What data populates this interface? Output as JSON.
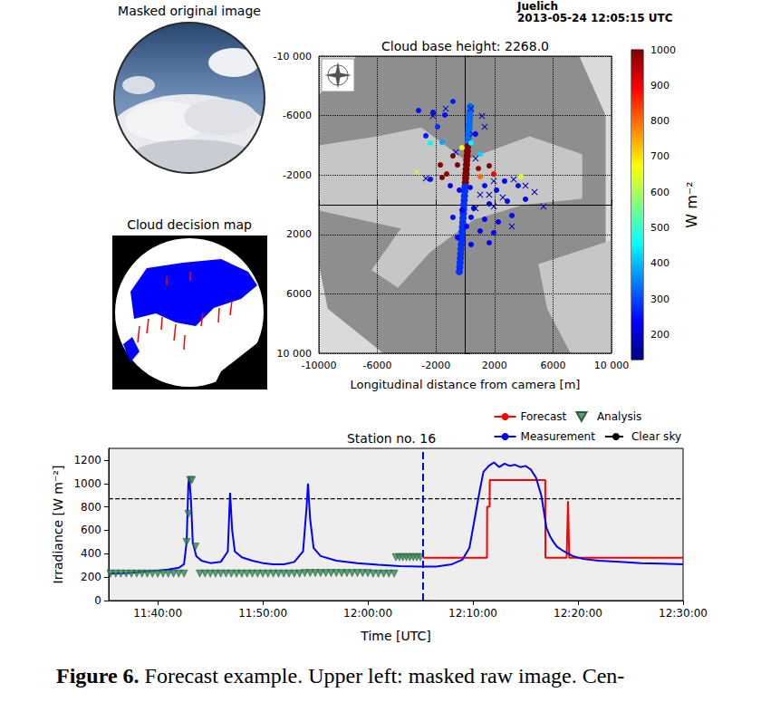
{
  "header": [
    "Juelich",
    "2013-05-24 12:05:15 UTC"
  ],
  "images": [
    {
      "title": "Masked original image"
    },
    {
      "title": "Cloud decision map"
    }
  ],
  "caption": {
    "label": "Figure 6.",
    "text": "Forecast example. Upper left: masked raw image. Cen-"
  },
  "chart_data": [
    {
      "type": "scatter",
      "title": "Cloud base height: 2268.0",
      "x_label": "Longitudinal distance from camera [m]",
      "xlim": [
        -10000,
        10000
      ],
      "xticks": [
        -10000,
        -6000,
        -2000,
        2000,
        6000,
        {
          "value": 10000,
          "label": "10 000"
        }
      ],
      "ylim": [
        10000,
        -10000
      ],
      "yticks": [
        {
          "value": -10000,
          "label": "-10 000"
        },
        -6000,
        -2000,
        2000,
        6000,
        {
          "value": 10000,
          "label": "10 000"
        }
      ],
      "grid": true,
      "colorbar": {
        "label": "W m⁻²",
        "range": [
          130,
          1000
        ],
        "ticks": [
          200,
          300,
          400,
          500,
          600,
          700,
          800,
          900,
          1000
        ]
      },
      "series": [
        {
          "type": "line",
          "marker": "o",
          "x": [
            350,
            330,
            310,
            290,
            270,
            250,
            230,
            210,
            190,
            170,
            150,
            130,
            110,
            90,
            70,
            50,
            30,
            10,
            -10,
            -30,
            -50,
            -70,
            -90,
            -110,
            -130,
            -150,
            -170,
            -190,
            -210,
            -230,
            -250,
            -270,
            -290,
            -310,
            -330,
            -350,
            -370,
            -400
          ],
          "y": [
            -6600,
            -6300,
            -6000,
            -5700,
            -5400,
            -5100,
            -4800,
            -4500,
            -4200,
            -3900,
            -3600,
            -3300,
            -3000,
            -2700,
            -2400,
            -2100,
            -1800,
            -1500,
            -1200,
            -900,
            -600,
            -300,
            0,
            300,
            600,
            900,
            1200,
            1500,
            1800,
            2100,
            2400,
            2700,
            3000,
            3300,
            3600,
            3900,
            4200,
            4500
          ],
          "values": [
            330,
            330,
            330,
            330,
            330,
            330,
            330,
            330,
            330,
            1000,
            1000,
            1000,
            1000,
            1000,
            1000,
            1000,
            1000,
            1000,
            280,
            280,
            280,
            280,
            280,
            280,
            280,
            280,
            280,
            280,
            280,
            280,
            280,
            280,
            280,
            280,
            280,
            280,
            280,
            280
          ]
        },
        {
          "type": "scatter",
          "marker": "o",
          "x": [
            -3190,
            -2200,
            -1390,
            -840,
            -1890,
            -2690,
            -2380,
            -1580,
            -220,
            400,
            710,
            1020,
            -840,
            -1700,
            -1270,
            -530,
            900,
            1640,
            1950,
            1020,
            -1580,
            -2380,
            -1020,
            -400,
            340,
            1330,
            2140,
            2690,
            3620,
            3810,
            4120,
            2880,
            1640,
            590,
            -220,
            -840,
            400,
            1330,
            2260,
            3190,
            90,
            1020,
            1950,
            -530,
            1640,
            400
          ],
          "y": [
            -6340,
            -6220,
            -6040,
            -6950,
            -5250,
            -4640,
            -4150,
            -4210,
            -3840,
            -4150,
            -4760,
            -3420,
            -3290,
            -2680,
            -2070,
            -2680,
            -2440,
            -2620,
            -2070,
            -1890,
            -1830,
            -1710,
            -1280,
            -980,
            -1160,
            -1280,
            -980,
            -1590,
            -1280,
            -1890,
            -370,
            -240,
            -60,
            240,
            370,
            850,
            850,
            980,
            1160,
            730,
            1460,
            1770,
            1890,
            2200,
            2560,
            2680
          ],
          "values": [
            250,
            250,
            250,
            260,
            280,
            260,
            450,
            380,
            650,
            450,
            250,
            420,
            1000,
            1000,
            980,
            1000,
            980,
            1000,
            900,
            800,
            1000,
            250,
            220,
            240,
            230,
            250,
            230,
            240,
            250,
            650,
            230,
            240,
            220,
            240,
            230,
            250,
            230,
            240,
            230,
            250,
            240,
            230,
            240,
            250,
            230,
            240
          ]
        },
        {
          "type": "scatter",
          "marker": "x",
          "x": [
            -2200,
            -1330,
            400,
            1150,
            1330,
            530,
            -650,
            710,
            -3310,
            -2690,
            1950,
            3310,
            1640,
            2570,
            4120,
            4740,
            5350,
            1020,
            1950,
            3190,
            710
          ],
          "y": [
            -5980,
            -6470,
            -6470,
            -5980,
            -5250,
            -4760,
            -3540,
            -3110,
            -2200,
            -1770,
            -1590,
            -1710,
            -670,
            -490,
            -1280,
            -850,
            120,
            -670,
            120,
            1460,
            240
          ],
          "values": [
            180,
            180,
            170,
            180,
            160,
            180,
            200,
            180,
            650,
            180,
            170,
            180,
            160,
            170,
            180,
            170,
            180,
            180,
            170,
            180,
            160
          ]
        }
      ]
    },
    {
      "type": "line",
      "title": "Station no. 16",
      "x_label": "Time [UTC]",
      "y_label": "Irradiance [W m⁻²]",
      "xlim": [
        "11:35:20",
        "12:30:00"
      ],
      "xticks": [
        "11:40:00",
        "11:50:00",
        "12:00:00",
        "12:10:00",
        "12:20:00",
        "12:30:00"
      ],
      "ylim": [
        0,
        1300
      ],
      "yticks": [
        0,
        200,
        400,
        600,
        800,
        1000,
        1200
      ],
      "grid": false,
      "legend": "upper right",
      "series": [
        {
          "name": "Forecast",
          "type": "line",
          "color": "#ff0000",
          "line_style": "solid",
          "x": [
            "12:05:15",
            "12:11:20",
            "12:11:21",
            "12:11:35",
            "12:11:36",
            "12:16:53",
            "12:16:54",
            "12:18:55",
            "12:19:03",
            "12:19:10",
            "12:30:00"
          ],
          "values": [
            365,
            365,
            800,
            800,
            1030,
            1030,
            365,
            365,
            850,
            365,
            365
          ]
        },
        {
          "name": "Analysis",
          "type": "scatter",
          "color": "#2e8b57",
          "marker": "v",
          "x": [
            "11:35:30",
            "11:36:00",
            "11:36:30",
            "11:37:00",
            "11:37:30",
            "11:38:00",
            "11:38:30",
            "11:39:00",
            "11:39:30",
            "11:40:00",
            "11:40:30",
            "11:41:00",
            "11:41:30",
            "11:42:00",
            "11:42:30",
            "11:42:45",
            "11:42:55",
            "11:43:05",
            "11:43:15",
            "11:43:35",
            "11:44:00",
            "11:44:30",
            "11:45:00",
            "11:45:30",
            "11:46:00",
            "11:46:30",
            "11:47:00",
            "11:47:30",
            "11:48:00",
            "11:48:30",
            "11:49:00",
            "11:49:30",
            "11:50:00",
            "11:50:30",
            "11:51:00",
            "11:51:30",
            "11:52:00",
            "11:52:30",
            "11:53:00",
            "11:53:30",
            "11:54:00",
            "11:54:30",
            "11:55:00",
            "11:55:30",
            "11:56:00",
            "11:56:30",
            "11:57:00",
            "11:57:30",
            "11:58:00",
            "11:58:30",
            "11:59:00",
            "11:59:30",
            "12:00:00",
            "12:00:30",
            "12:01:00",
            "12:01:30",
            "12:02:00",
            "12:02:30",
            "12:02:40",
            "12:03:00",
            "12:03:20",
            "12:03:40",
            "12:04:00",
            "12:04:20",
            "12:04:40",
            "12:05:00"
          ],
          "values": [
            230,
            230,
            230,
            230,
            230,
            230,
            230,
            230,
            230,
            230,
            230,
            230,
            230,
            230,
            230,
            500,
            740,
            1030,
            1030,
            460,
            230,
            230,
            230,
            230,
            230,
            230,
            230,
            230,
            230,
            230,
            230,
            230,
            230,
            230,
            230,
            230,
            230,
            230,
            230,
            230,
            235,
            235,
            235,
            235,
            235,
            235,
            235,
            235,
            235,
            235,
            235,
            235,
            235,
            230,
            230,
            230,
            230,
            230,
            370,
            370,
            370,
            370,
            370,
            370,
            370,
            370
          ]
        },
        {
          "name": "Measurement",
          "type": "line",
          "color": "#0000ff",
          "line_style": "solid",
          "x": [
            "11:35:20",
            "11:37:00",
            "11:38:30",
            "11:40:00",
            "11:41:00",
            "11:42:00",
            "11:42:30",
            "11:42:45",
            "11:42:55",
            "11:43:00",
            "11:43:10",
            "11:43:20",
            "11:43:40",
            "11:44:10",
            "11:45:00",
            "11:46:00",
            "11:46:40",
            "11:46:53",
            "11:47:05",
            "11:47:20",
            "11:48:00",
            "11:49:00",
            "11:50:00",
            "11:51:00",
            "11:52:00",
            "11:53:00",
            "11:53:50",
            "11:54:10",
            "11:54:18",
            "11:54:30",
            "11:54:50",
            "11:55:30",
            "11:57:00",
            "11:59:00",
            "12:01:00",
            "12:03:00",
            "12:05:00",
            "12:06:30",
            "12:08:00",
            "12:09:00",
            "12:09:40",
            "12:10:10",
            "12:10:40",
            "12:11:00",
            "12:11:30",
            "12:12:00",
            "12:12:30",
            "12:13:00",
            "12:13:30",
            "12:14:00",
            "12:14:30",
            "12:15:00",
            "12:15:30",
            "12:16:00",
            "12:16:30",
            "12:17:00",
            "12:17:20",
            "12:17:40",
            "12:18:00",
            "12:18:40",
            "12:19:30",
            "12:20:30",
            "12:22:00",
            "12:24:00",
            "12:26:00",
            "12:28:00",
            "12:30:00"
          ],
          "values": [
            230,
            235,
            245,
            255,
            265,
            280,
            310,
            500,
            1000,
            1060,
            850,
            500,
            380,
            340,
            320,
            330,
            420,
            920,
            600,
            420,
            370,
            340,
            320,
            310,
            310,
            330,
            420,
            800,
            1000,
            700,
            450,
            380,
            340,
            320,
            305,
            295,
            290,
            290,
            310,
            350,
            450,
            700,
            950,
            1100,
            1150,
            1180,
            1140,
            1170,
            1150,
            1160,
            1140,
            1150,
            1120,
            1050,
            900,
            620,
            550,
            500,
            460,
            420,
            380,
            355,
            340,
            330,
            320,
            315,
            310
          ]
        },
        {
          "name": "Clear sky",
          "type": "line",
          "color": "#000000",
          "line_style": "dashed",
          "x": [
            "11:35:20",
            "12:30:00"
          ],
          "values": [
            870,
            870
          ]
        },
        {
          "type": "vline",
          "color": "#0000ff",
          "line_style": "dashed",
          "x": [
            "12:05:15"
          ]
        }
      ]
    }
  ]
}
